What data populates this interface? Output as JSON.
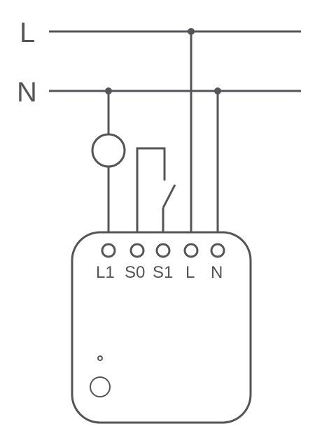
{
  "colors": {
    "line": "#555558",
    "text": "#555558"
  },
  "rails": {
    "line_label": "L",
    "neutral_label": "N"
  },
  "device": {
    "terminals": [
      "L1",
      "S0",
      "S1",
      "L",
      "N"
    ]
  },
  "icons": {
    "load": "lamp-load-circle",
    "switch": "switch-contact",
    "led": "status-led-icon",
    "button": "device-button-icon"
  }
}
